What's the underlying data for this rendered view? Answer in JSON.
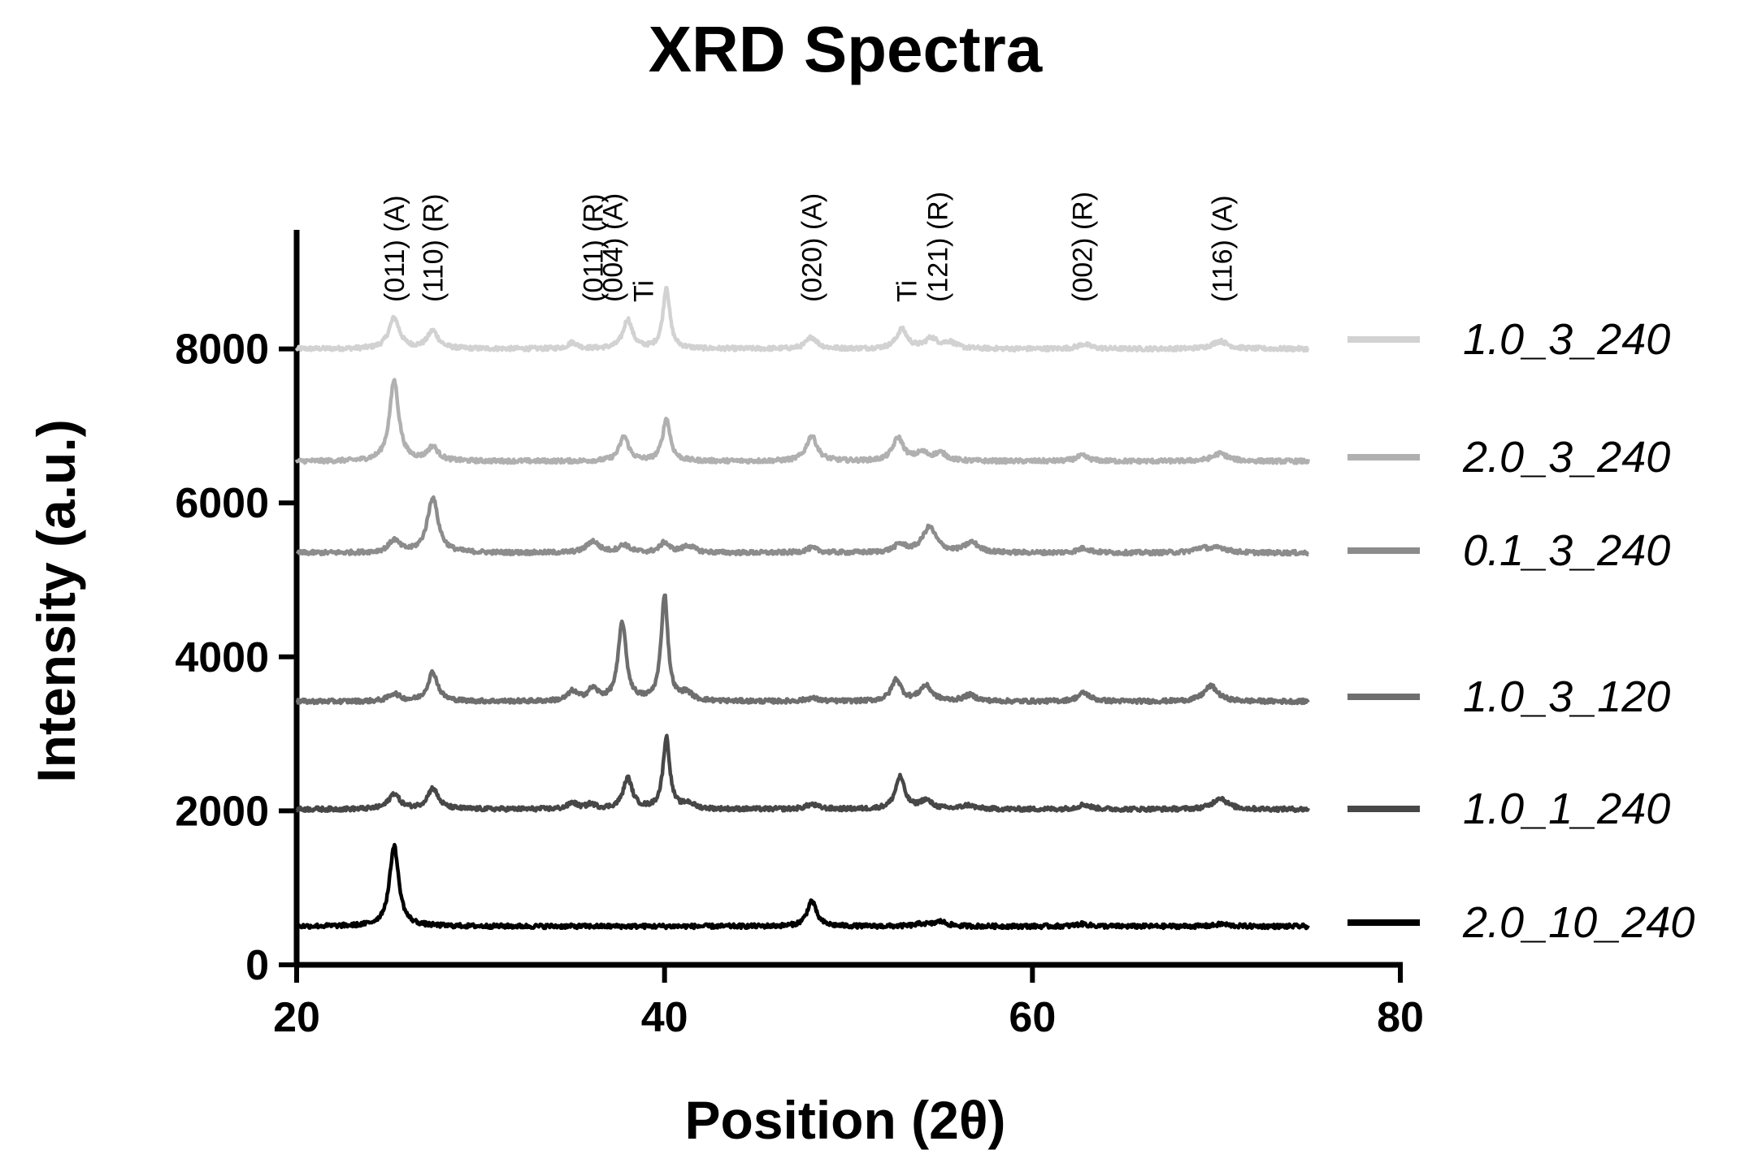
{
  "chart_data": {
    "type": "line",
    "title": "XRD Spectra",
    "xlabel": "Position (2θ)",
    "ylabel": "Intensity (a.u.)",
    "xlim": [
      20,
      80
    ],
    "ylim": [
      0,
      9500
    ],
    "xticks": [
      20,
      40,
      60,
      80
    ],
    "yticks": [
      0,
      2000,
      4000,
      6000,
      8000
    ],
    "data_x_range": [
      20,
      75
    ],
    "grid": false,
    "legend_position": "right",
    "peak_annotations": [
      {
        "x": 25.3,
        "lines": [
          "(011) (A)"
        ]
      },
      {
        "x": 27.4,
        "lines": [
          "(110) (R)"
        ]
      },
      {
        "x": 36.1,
        "lines": [
          "(011) (R)"
        ]
      },
      {
        "x": 38.0,
        "lines": [
          "(004) (A)",
          "Ti"
        ]
      },
      {
        "x": 48.0,
        "lines": [
          "(020) (A)"
        ]
      },
      {
        "x": 54.0,
        "lines": [
          "Ti",
          "(121) (R)"
        ]
      },
      {
        "x": 62.7,
        "lines": [
          "(002) (R)"
        ]
      },
      {
        "x": 70.3,
        "lines": [
          "(116) (A)"
        ]
      }
    ],
    "series": [
      {
        "name": "1.0_3_240",
        "color": "#d2d2d2",
        "baseline": 8000,
        "peaks": [
          [
            25.3,
            400,
            0.35
          ],
          [
            27.4,
            230,
            0.35
          ],
          [
            35.0,
            80,
            0.3
          ],
          [
            38.0,
            380,
            0.3
          ],
          [
            40.1,
            800,
            0.22
          ],
          [
            48.0,
            150,
            0.35
          ],
          [
            52.9,
            250,
            0.35
          ],
          [
            54.5,
            130,
            0.4
          ],
          [
            55.5,
            80,
            0.4
          ],
          [
            62.8,
            60,
            0.4
          ],
          [
            70.2,
            100,
            0.5
          ]
        ]
      },
      {
        "name": "2.0_3_240",
        "color": "#b0b0b0",
        "baseline": 6540,
        "peaks": [
          [
            25.3,
            1050,
            0.3
          ],
          [
            27.4,
            180,
            0.35
          ],
          [
            37.8,
            320,
            0.3
          ],
          [
            40.1,
            550,
            0.25
          ],
          [
            48.0,
            330,
            0.35
          ],
          [
            52.7,
            300,
            0.35
          ],
          [
            54.0,
            100,
            0.4
          ],
          [
            55.0,
            100,
            0.4
          ],
          [
            62.7,
            70,
            0.4
          ],
          [
            70.2,
            100,
            0.5
          ]
        ]
      },
      {
        "name": "0.1_3_240",
        "color": "#8c8c8c",
        "baseline": 5350,
        "peaks": [
          [
            25.3,
            160,
            0.35
          ],
          [
            27.4,
            720,
            0.35
          ],
          [
            36.1,
            150,
            0.4
          ],
          [
            37.8,
            100,
            0.35
          ],
          [
            40.0,
            130,
            0.3
          ],
          [
            41.3,
            90,
            0.4
          ],
          [
            48.0,
            60,
            0.4
          ],
          [
            52.8,
            100,
            0.4
          ],
          [
            54.4,
            330,
            0.45
          ],
          [
            56.7,
            130,
            0.45
          ],
          [
            62.8,
            60,
            0.4
          ],
          [
            69.2,
            60,
            0.5
          ],
          [
            70.2,
            60,
            0.5
          ]
        ]
      },
      {
        "name": "1.0_3_120",
        "color": "#6e6e6e",
        "baseline": 3420,
        "peaks": [
          [
            25.3,
            100,
            0.35
          ],
          [
            27.4,
            380,
            0.32
          ],
          [
            35.0,
            120,
            0.3
          ],
          [
            36.1,
            150,
            0.35
          ],
          [
            37.7,
            1020,
            0.26
          ],
          [
            40.0,
            1380,
            0.22
          ],
          [
            41.2,
            100,
            0.35
          ],
          [
            48.0,
            40,
            0.4
          ],
          [
            52.6,
            280,
            0.32
          ],
          [
            54.2,
            200,
            0.4
          ],
          [
            56.6,
            80,
            0.4
          ],
          [
            62.8,
            110,
            0.4
          ],
          [
            69.7,
            200,
            0.45
          ]
        ]
      },
      {
        "name": "1.0_1_240",
        "color": "#474747",
        "baseline": 2020,
        "peaks": [
          [
            25.3,
            200,
            0.35
          ],
          [
            27.4,
            270,
            0.35
          ],
          [
            35.0,
            80,
            0.3
          ],
          [
            36.0,
            60,
            0.3
          ],
          [
            38.0,
            400,
            0.3
          ],
          [
            40.1,
            930,
            0.22
          ],
          [
            41.3,
            70,
            0.35
          ],
          [
            48.0,
            60,
            0.4
          ],
          [
            52.8,
            420,
            0.3
          ],
          [
            54.2,
            110,
            0.4
          ],
          [
            56.5,
            50,
            0.4
          ],
          [
            62.8,
            60,
            0.4
          ],
          [
            70.2,
            150,
            0.45
          ]
        ]
      },
      {
        "name": "2.0_10_240",
        "color": "#000000",
        "baseline": 500,
        "peaks": [
          [
            25.3,
            1050,
            0.3
          ],
          [
            48.0,
            330,
            0.3
          ],
          [
            54.0,
            30,
            0.4
          ],
          [
            55.0,
            60,
            0.4
          ],
          [
            62.7,
            30,
            0.4
          ],
          [
            70.3,
            30,
            0.4
          ]
        ]
      }
    ]
  }
}
